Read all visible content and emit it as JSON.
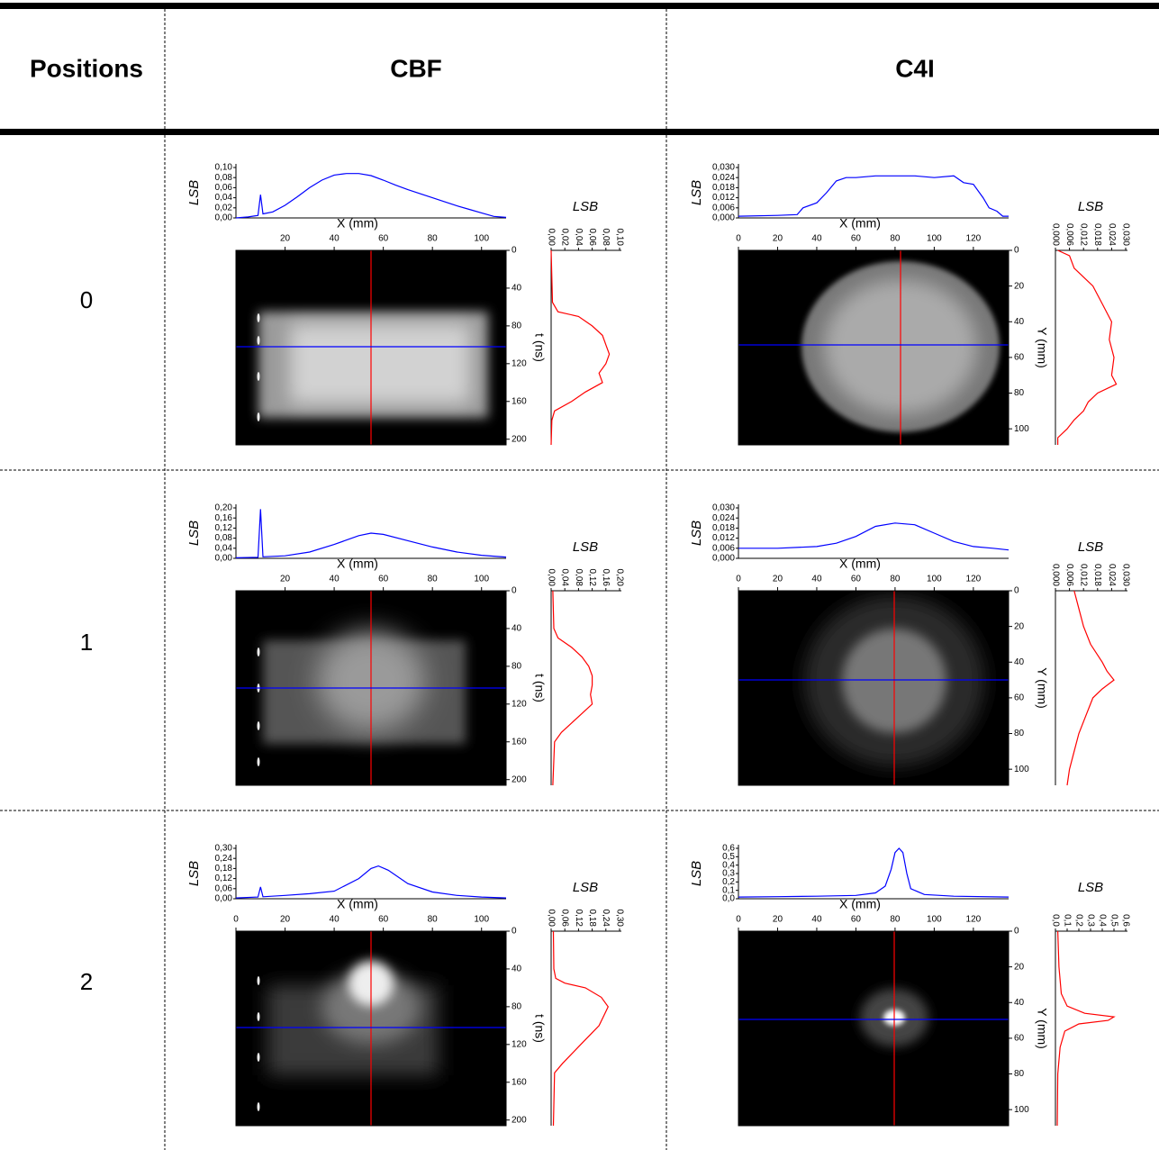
{
  "header": {
    "columns": [
      "Positions",
      "CBF",
      "C4I"
    ]
  },
  "rows": [
    {
      "label": "0"
    },
    {
      "label": "1"
    },
    {
      "label": "2"
    }
  ],
  "chart_data": [
    {
      "type": "profile-image",
      "xlabel": "X (mm)",
      "xlim": [
        0,
        110
      ],
      "xticks": [
        20,
        40,
        60,
        80,
        100
      ],
      "ylabel": "t (ns)",
      "ylim": [
        0,
        206
      ],
      "yticks": [
        0,
        40,
        80,
        120,
        160,
        200
      ],
      "x_profile": {
        "ylabel": "LSB",
        "color": "#0000ff",
        "ylim": [
          0,
          0.1
        ],
        "yticks": [
          {
            "value": 0,
            "label": "0,00"
          },
          {
            "value": 0.02,
            "label": "0,02"
          },
          {
            "value": 0.04,
            "label": "0,04"
          },
          {
            "value": 0.06,
            "label": "0,06"
          },
          {
            "value": 0.08,
            "label": "0,08"
          },
          {
            "value": 0.1,
            "label": "0,10"
          }
        ],
        "x": [
          0,
          5,
          9,
          10,
          11,
          15,
          20,
          25,
          30,
          35,
          40,
          45,
          50,
          55,
          60,
          65,
          70,
          75,
          80,
          85,
          90,
          95,
          100,
          105,
          110
        ],
        "values": [
          0,
          0.002,
          0.005,
          0.046,
          0.008,
          0.012,
          0.025,
          0.042,
          0.06,
          0.075,
          0.085,
          0.088,
          0.088,
          0.084,
          0.075,
          0.065,
          0.056,
          0.048,
          0.04,
          0.032,
          0.024,
          0.017,
          0.01,
          0.003,
          0.001
        ]
      },
      "y_profile": {
        "xlabel": "LSB",
        "color": "#ff0000",
        "xlim": [
          0,
          0.1
        ],
        "xticks": [
          {
            "value": 0,
            "label": "0,00"
          },
          {
            "value": 0.02,
            "label": "0,02"
          },
          {
            "value": 0.04,
            "label": "0,04"
          },
          {
            "value": 0.06,
            "label": "0,06"
          },
          {
            "value": 0.08,
            "label": "0,08"
          },
          {
            "value": 0.1,
            "label": "0,10"
          }
        ],
        "y": [
          0,
          55,
          65,
          70,
          80,
          90,
          100,
          110,
          120,
          130,
          140,
          150,
          160,
          170,
          180,
          206
        ],
        "values": [
          0,
          0.002,
          0.01,
          0.04,
          0.06,
          0.075,
          0.08,
          0.085,
          0.08,
          0.07,
          0.075,
          0.05,
          0.03,
          0.005,
          0.001,
          0
        ]
      }
    },
    {
      "type": "profile-image",
      "xlabel": "X (mm)",
      "xlim": [
        0,
        138
      ],
      "xticks": [
        0,
        20,
        40,
        60,
        80,
        100,
        120
      ],
      "ylabel": "Y (mm)",
      "ylim": [
        0,
        109
      ],
      "yticks": [
        0,
        20,
        40,
        60,
        80,
        100
      ],
      "x_profile": {
        "ylabel": "LSB",
        "color": "#0000ff",
        "ylim": [
          0,
          0.03
        ],
        "yticks": [
          {
            "value": 0,
            "label": "0,000"
          },
          {
            "value": 0.006,
            "label": "0,006"
          },
          {
            "value": 0.012,
            "label": "0,012"
          },
          {
            "value": 0.018,
            "label": "0,018"
          },
          {
            "value": 0.024,
            "label": "0,024"
          },
          {
            "value": 0.03,
            "label": "0,030"
          }
        ],
        "x": [
          0,
          20,
          30,
          33,
          40,
          45,
          50,
          55,
          60,
          70,
          80,
          90,
          100,
          110,
          115,
          120,
          125,
          128,
          132,
          135,
          138
        ],
        "values": [
          0.001,
          0.0015,
          0.002,
          0.006,
          0.009,
          0.015,
          0.022,
          0.024,
          0.024,
          0.025,
          0.025,
          0.025,
          0.024,
          0.025,
          0.021,
          0.02,
          0.012,
          0.006,
          0.004,
          0.001,
          0.001
        ]
      },
      "y_profile": {
        "xlabel": "LSB",
        "color": "#ff0000",
        "xlim": [
          0,
          0.03
        ],
        "xticks": [
          {
            "value": 0,
            "label": "0,000"
          },
          {
            "value": 0.006,
            "label": "0,006"
          },
          {
            "value": 0.012,
            "label": "0,012"
          },
          {
            "value": 0.018,
            "label": "0,018"
          },
          {
            "value": 0.024,
            "label": "0,024"
          },
          {
            "value": 0.03,
            "label": "0,030"
          }
        ],
        "y": [
          0,
          3,
          10,
          15,
          20,
          25,
          30,
          40,
          50,
          60,
          70,
          75,
          80,
          85,
          90,
          95,
          100,
          105,
          109
        ],
        "values": [
          0.001,
          0.006,
          0.008,
          0.012,
          0.016,
          0.018,
          0.02,
          0.024,
          0.023,
          0.025,
          0.024,
          0.026,
          0.018,
          0.014,
          0.012,
          0.008,
          0.005,
          0.001,
          0.001
        ]
      }
    },
    {
      "type": "profile-image",
      "xlabel": "X (mm)",
      "xlim": [
        0,
        110
      ],
      "xticks": [
        20,
        40,
        60,
        80,
        100
      ],
      "ylabel": "t (ns)",
      "ylim": [
        0,
        206
      ],
      "yticks": [
        0,
        40,
        80,
        120,
        160,
        200
      ],
      "x_profile": {
        "ylabel": "LSB",
        "color": "#0000ff",
        "ylim": [
          0,
          0.2
        ],
        "yticks": [
          {
            "value": 0,
            "label": "0,00"
          },
          {
            "value": 0.04,
            "label": "0,04"
          },
          {
            "value": 0.08,
            "label": "0,08"
          },
          {
            "value": 0.12,
            "label": "0,12"
          },
          {
            "value": 0.16,
            "label": "0,16"
          },
          {
            "value": 0.2,
            "label": "0,20"
          }
        ],
        "x": [
          0,
          9,
          10,
          11,
          20,
          30,
          40,
          50,
          55,
          60,
          70,
          80,
          90,
          100,
          110
        ],
        "values": [
          0.002,
          0.004,
          0.195,
          0.006,
          0.01,
          0.025,
          0.055,
          0.09,
          0.1,
          0.095,
          0.07,
          0.045,
          0.025,
          0.012,
          0.005
        ]
      },
      "y_profile": {
        "xlabel": "LSB",
        "color": "#ff0000",
        "xlim": [
          0,
          0.2
        ],
        "xticks": [
          {
            "value": 0,
            "label": "0,00"
          },
          {
            "value": 0.04,
            "label": "0,04"
          },
          {
            "value": 0.08,
            "label": "0,08"
          },
          {
            "value": 0.12,
            "label": "0,12"
          },
          {
            "value": 0.16,
            "label": "0,16"
          },
          {
            "value": 0.2,
            "label": "0,20"
          }
        ],
        "y": [
          0,
          40,
          50,
          60,
          70,
          80,
          90,
          100,
          110,
          120,
          130,
          140,
          150,
          160,
          206
        ],
        "values": [
          0.005,
          0.008,
          0.02,
          0.06,
          0.09,
          0.11,
          0.12,
          0.12,
          0.115,
          0.12,
          0.09,
          0.06,
          0.03,
          0.01,
          0.005
        ]
      }
    },
    {
      "type": "profile-image",
      "xlabel": "X (mm)",
      "xlim": [
        0,
        138
      ],
      "xticks": [
        0,
        20,
        40,
        60,
        80,
        100,
        120
      ],
      "ylabel": "Y (mm)",
      "ylim": [
        0,
        109
      ],
      "yticks": [
        0,
        20,
        40,
        60,
        80,
        100
      ],
      "x_profile": {
        "ylabel": "LSB",
        "color": "#0000ff",
        "ylim": [
          0,
          0.03
        ],
        "yticks": [
          {
            "value": 0,
            "label": "0,000"
          },
          {
            "value": 0.006,
            "label": "0,006"
          },
          {
            "value": 0.012,
            "label": "0,012"
          },
          {
            "value": 0.018,
            "label": "0,018"
          },
          {
            "value": 0.024,
            "label": "0,024"
          },
          {
            "value": 0.03,
            "label": "0,030"
          }
        ],
        "x": [
          0,
          20,
          40,
          50,
          60,
          70,
          80,
          90,
          100,
          110,
          120,
          130,
          138
        ],
        "values": [
          0.006,
          0.006,
          0.007,
          0.009,
          0.013,
          0.019,
          0.021,
          0.02,
          0.015,
          0.01,
          0.007,
          0.006,
          0.005
        ]
      },
      "y_profile": {
        "xlabel": "LSB",
        "color": "#ff0000",
        "xlim": [
          0,
          0.03
        ],
        "xticks": [
          {
            "value": 0,
            "label": "0,000"
          },
          {
            "value": 0.006,
            "label": "0,006"
          },
          {
            "value": 0.012,
            "label": "0,012"
          },
          {
            "value": 0.018,
            "label": "0,018"
          },
          {
            "value": 0.024,
            "label": "0,024"
          },
          {
            "value": 0.03,
            "label": "0,030"
          }
        ],
        "y": [
          0,
          10,
          20,
          30,
          40,
          45,
          50,
          55,
          60,
          70,
          80,
          90,
          100,
          109
        ],
        "values": [
          0.008,
          0.01,
          0.012,
          0.015,
          0.02,
          0.022,
          0.025,
          0.02,
          0.016,
          0.013,
          0.01,
          0.008,
          0.006,
          0.005
        ]
      }
    },
    {
      "type": "profile-image",
      "xlabel": "X (mm)",
      "xlim": [
        0,
        110
      ],
      "xticks": [
        0,
        20,
        40,
        60,
        80,
        100
      ],
      "ylabel": "t (ns)",
      "ylim": [
        0,
        206
      ],
      "yticks": [
        0,
        40,
        80,
        120,
        160,
        200
      ],
      "x_profile": {
        "ylabel": "LSB",
        "color": "#0000ff",
        "ylim": [
          0,
          0.3
        ],
        "yticks": [
          {
            "value": 0,
            "label": "0,00"
          },
          {
            "value": 0.06,
            "label": "0,06"
          },
          {
            "value": 0.12,
            "label": "0,12"
          },
          {
            "value": 0.18,
            "label": "0,18"
          },
          {
            "value": 0.24,
            "label": "0,24"
          },
          {
            "value": 0.3,
            "label": "0,30"
          }
        ],
        "x": [
          0,
          9,
          10,
          11,
          20,
          30,
          40,
          50,
          55,
          58,
          62,
          70,
          80,
          90,
          100,
          110
        ],
        "values": [
          0.005,
          0.01,
          0.07,
          0.012,
          0.02,
          0.03,
          0.045,
          0.12,
          0.18,
          0.195,
          0.17,
          0.09,
          0.04,
          0.02,
          0.01,
          0.005
        ]
      },
      "y_profile": {
        "xlabel": "LSB",
        "color": "#ff0000",
        "xlim": [
          0,
          0.3
        ],
        "xticks": [
          {
            "value": 0,
            "label": "0,00"
          },
          {
            "value": 0.06,
            "label": "0,06"
          },
          {
            "value": 0.12,
            "label": "0,12"
          },
          {
            "value": 0.18,
            "label": "0,18"
          },
          {
            "value": 0.24,
            "label": "0,24"
          },
          {
            "value": 0.3,
            "label": "0,30"
          }
        ],
        "y": [
          0,
          40,
          50,
          55,
          60,
          70,
          80,
          90,
          100,
          110,
          120,
          130,
          140,
          150,
          206
        ],
        "values": [
          0.01,
          0.012,
          0.02,
          0.06,
          0.15,
          0.22,
          0.25,
          0.23,
          0.21,
          0.17,
          0.13,
          0.09,
          0.05,
          0.015,
          0.01
        ]
      }
    },
    {
      "type": "profile-image",
      "xlabel": "X (mm)",
      "xlim": [
        0,
        138
      ],
      "xticks": [
        0,
        20,
        40,
        60,
        80,
        100,
        120
      ],
      "ylabel": "Y (mm)",
      "ylim": [
        0,
        109
      ],
      "yticks": [
        0,
        20,
        40,
        60,
        80,
        100
      ],
      "x_profile": {
        "ylabel": "LSB",
        "color": "#0000ff",
        "ylim": [
          0,
          0.6
        ],
        "yticks": [
          {
            "value": 0,
            "label": "0,0"
          },
          {
            "value": 0.1,
            "label": "0,1"
          },
          {
            "value": 0.2,
            "label": "0,2"
          },
          {
            "value": 0.3,
            "label": "0,3"
          },
          {
            "value": 0.4,
            "label": "0,4"
          },
          {
            "value": 0.5,
            "label": "0,5"
          },
          {
            "value": 0.6,
            "label": "0,6"
          }
        ],
        "x": [
          0,
          20,
          40,
          60,
          70,
          75,
          78,
          80,
          82,
          84,
          86,
          88,
          95,
          110,
          138
        ],
        "values": [
          0.02,
          0.025,
          0.03,
          0.04,
          0.07,
          0.15,
          0.35,
          0.55,
          0.6,
          0.55,
          0.3,
          0.12,
          0.05,
          0.03,
          0.02
        ]
      },
      "y_profile": {
        "xlabel": "LSB",
        "color": "#ff0000",
        "xlim": [
          0,
          0.6
        ],
        "xticks": [
          {
            "value": 0,
            "label": "0,0"
          },
          {
            "value": 0.1,
            "label": "0,1"
          },
          {
            "value": 0.2,
            "label": "0,2"
          },
          {
            "value": 0.3,
            "label": "0,3"
          },
          {
            "value": 0.4,
            "label": "0,4"
          },
          {
            "value": 0.5,
            "label": "0,5"
          },
          {
            "value": 0.6,
            "label": "0,6"
          }
        ],
        "y": [
          0,
          20,
          35,
          42,
          46,
          48,
          50,
          52,
          56,
          65,
          80,
          109
        ],
        "values": [
          0.02,
          0.03,
          0.05,
          0.1,
          0.25,
          0.5,
          0.45,
          0.2,
          0.08,
          0.04,
          0.02,
          0.015
        ]
      }
    }
  ]
}
